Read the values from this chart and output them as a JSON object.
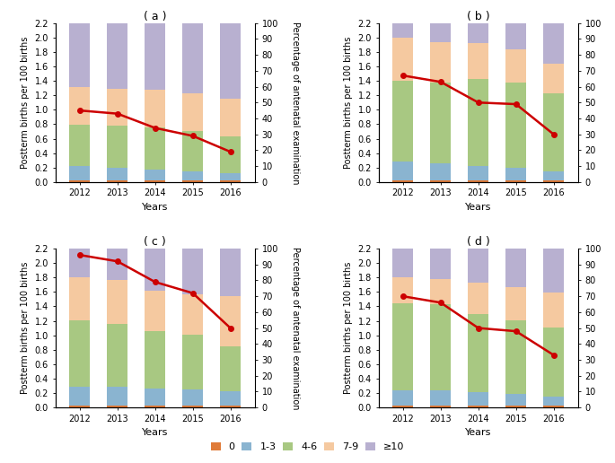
{
  "years": [
    2012,
    2013,
    2014,
    2015,
    2016
  ],
  "subplots": {
    "a": {
      "title": "( a )",
      "bar_data": {
        "0": [
          0.022,
          0.022,
          0.022,
          0.022,
          0.022
        ],
        "1-3": [
          0.2,
          0.18,
          0.15,
          0.13,
          0.1
        ],
        "4-6": [
          0.58,
          0.58,
          0.58,
          0.55,
          0.52
        ],
        "7-9": [
          0.52,
          0.52,
          0.52,
          0.52,
          0.52
        ],
        ">=10": [
          0.898,
          0.918,
          0.928,
          0.978,
          1.058
        ]
      },
      "line": [
        45,
        43,
        34,
        29,
        19
      ]
    },
    "b": {
      "title": "( b )",
      "bar_data": {
        "0": [
          0.022,
          0.022,
          0.022,
          0.022,
          0.022
        ],
        "1-3": [
          0.26,
          0.24,
          0.2,
          0.17,
          0.12
        ],
        "4-6": [
          1.12,
          1.12,
          1.2,
          1.18,
          1.08
        ],
        "7-9": [
          0.6,
          0.56,
          0.5,
          0.47,
          0.42
        ],
        ">=10": [
          0.198,
          0.258,
          0.278,
          0.358,
          0.558
        ]
      },
      "line": [
        67,
        63,
        50,
        49,
        30
      ]
    },
    "c": {
      "title": "( c )",
      "bar_data": {
        "0": [
          0.022,
          0.022,
          0.022,
          0.022,
          0.022
        ],
        "1-3": [
          0.27,
          0.26,
          0.24,
          0.23,
          0.2
        ],
        "4-6": [
          0.91,
          0.87,
          0.79,
          0.75,
          0.62
        ],
        "7-9": [
          0.6,
          0.6,
          0.57,
          0.57,
          0.7
        ],
        ">=10": [
          0.398,
          0.428,
          0.578,
          0.628,
          0.658
        ]
      },
      "line": [
        96,
        92,
        79,
        72,
        50
      ]
    },
    "d": {
      "title": "( d )",
      "bar_data": {
        "0": [
          0.022,
          0.022,
          0.022,
          0.022,
          0.022
        ],
        "1-3": [
          0.22,
          0.21,
          0.19,
          0.17,
          0.13
        ],
        "4-6": [
          1.2,
          1.2,
          1.08,
          1.02,
          0.96
        ],
        "7-9": [
          0.36,
          0.35,
          0.44,
          0.47,
          0.48
        ],
        ">=10": [
          0.398,
          0.418,
          0.468,
          0.538,
          0.608
        ]
      },
      "line": [
        70,
        66,
        50,
        48,
        33
      ]
    }
  },
  "bar_colors": {
    "0": "#E07B39",
    "1-3": "#8AB4D0",
    "4-6": "#A8C882",
    "7-9": "#F5C9A0",
    ">=10": "#B8B0D0"
  },
  "line_color": "#CC0000",
  "ylim_left": [
    0.0,
    2.2
  ],
  "ylim_right": [
    0,
    100
  ],
  "yticks_left": [
    0.0,
    0.2,
    0.4,
    0.6,
    0.8,
    1.0,
    1.2,
    1.4,
    1.6,
    1.8,
    2.0,
    2.2
  ],
  "yticks_right": [
    0,
    10,
    20,
    30,
    40,
    50,
    60,
    70,
    80,
    90,
    100
  ],
  "xlabel": "Years",
  "ylabel_left": "Postterm births per 100 births",
  "ylabel_right": "Percentage of antenatal examination",
  "legend_labels": [
    "0",
    "1-3",
    "4-6",
    "7-9",
    "≥10"
  ],
  "bar_width": 0.55,
  "bar_total": 2.2
}
